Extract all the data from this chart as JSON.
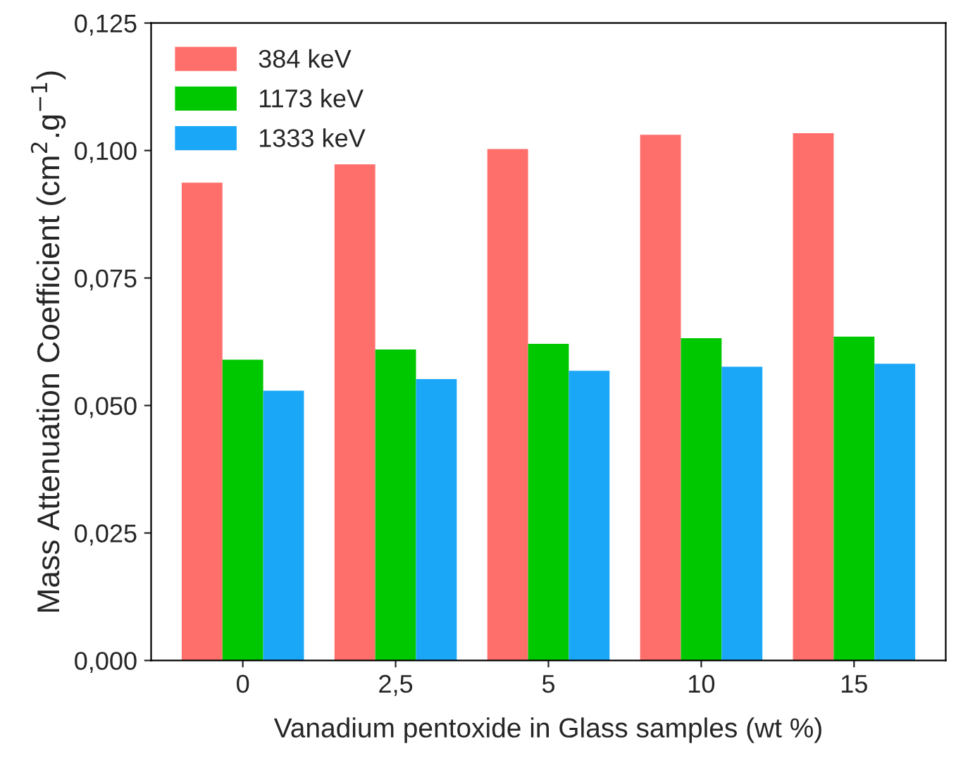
{
  "chart_data": {
    "type": "bar",
    "xlabel": "Vanadium pentoxide in Glass samples (wt %)",
    "ylabel": "Mass Attenuation Coefficient (cm$^{2}$.g$^{−1}$)",
    "categories": [
      "0",
      "2,5",
      "5",
      "10",
      "15"
    ],
    "series": [
      {
        "name": "384 keV",
        "color": "#fe6f6b",
        "values": [
          0.0937,
          0.0973,
          0.1003,
          0.1031,
          0.1034
        ]
      },
      {
        "name": "1173 keV",
        "color": "#00c800",
        "values": [
          0.059,
          0.061,
          0.0621,
          0.0632,
          0.0635
        ]
      },
      {
        "name": "1333 keV",
        "color": "#1aa7f7",
        "values": [
          0.0529,
          0.0552,
          0.0568,
          0.0576,
          0.0582
        ]
      }
    ],
    "ylim": [
      0,
      0.125
    ],
    "yticks": [
      {
        "value": 0,
        "label": "0,000"
      },
      {
        "value": 0.025,
        "label": "0,025"
      },
      {
        "value": 0.05,
        "label": "0,050"
      },
      {
        "value": 0.075,
        "label": "0,075"
      },
      {
        "value": 0.1,
        "label": "0,100"
      },
      {
        "value": 0.125,
        "label": "0,125"
      }
    ],
    "legend": "top left",
    "grid": false
  }
}
